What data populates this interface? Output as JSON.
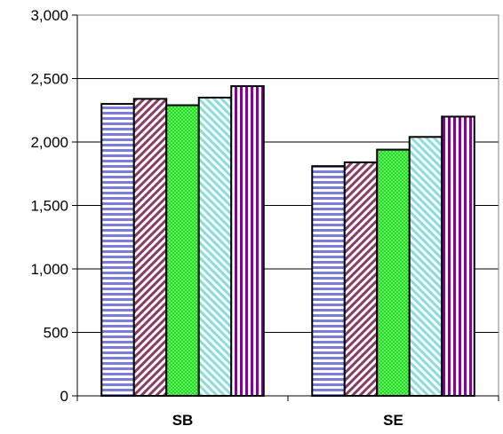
{
  "chart_data": {
    "type": "bar",
    "title": "",
    "xlabel": "",
    "ylabel": "",
    "categories": [
      "SB",
      "SE"
    ],
    "series": [
      {
        "values": [
          2300,
          1810
        ],
        "color": "#7a7af0",
        "pattern": "horizontal-stripes"
      },
      {
        "values": [
          2340,
          1840
        ],
        "color": "#8b3a62",
        "pattern": "diagonal-stripes"
      },
      {
        "values": [
          2290,
          1940
        ],
        "color": "#22dd22",
        "pattern": "dots"
      },
      {
        "values": [
          2350,
          2040
        ],
        "color": "#88dddd",
        "pattern": "light-diagonal-stripes"
      },
      {
        "values": [
          2440,
          2200
        ],
        "color": "#7a0a8a",
        "pattern": "vertical-stripes"
      }
    ],
    "ylim": [
      0,
      3000
    ],
    "yticks": [
      0,
      500,
      1000,
      1500,
      2000,
      2500,
      3000
    ],
    "ytick_labels": [
      "0",
      "500",
      "1,000",
      "1,500",
      "2,000",
      "2,500",
      "3,000"
    ],
    "grid": "horizontal",
    "legend": "none"
  }
}
